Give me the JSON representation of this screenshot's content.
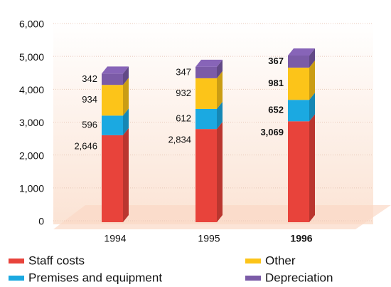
{
  "chart_data": {
    "type": "bar",
    "stacked": true,
    "categories": [
      "1994",
      "1995",
      "1996"
    ],
    "series": [
      {
        "name": "Staff costs",
        "color": "#e8433b",
        "values": [
          2646,
          2834,
          3069
        ],
        "value_labels": [
          "2,646",
          "2,834",
          "3,069"
        ]
      },
      {
        "name": "Premises and equipment",
        "color": "#1ba9e1",
        "values": [
          596,
          612,
          652
        ]
      },
      {
        "name": "Other",
        "color": "#fcc419",
        "values": [
          934,
          932,
          981
        ]
      },
      {
        "name": "Depreciation",
        "color": "#7b5ba7",
        "values": [
          342,
          347,
          367
        ]
      }
    ],
    "ylim": [
      0,
      6000
    ],
    "yticks": [
      0,
      {
        "value": 1000,
        "label": "1,000"
      },
      {
        "value": 2000,
        "label": "2,000"
      },
      {
        "value": 3000,
        "label": "3,000"
      },
      {
        "value": 4000,
        "label": "4,000"
      },
      {
        "value": 5000,
        "label": "5,000"
      },
      {
        "value": 6000,
        "label": "6,000"
      }
    ],
    "grid": true
  }
}
